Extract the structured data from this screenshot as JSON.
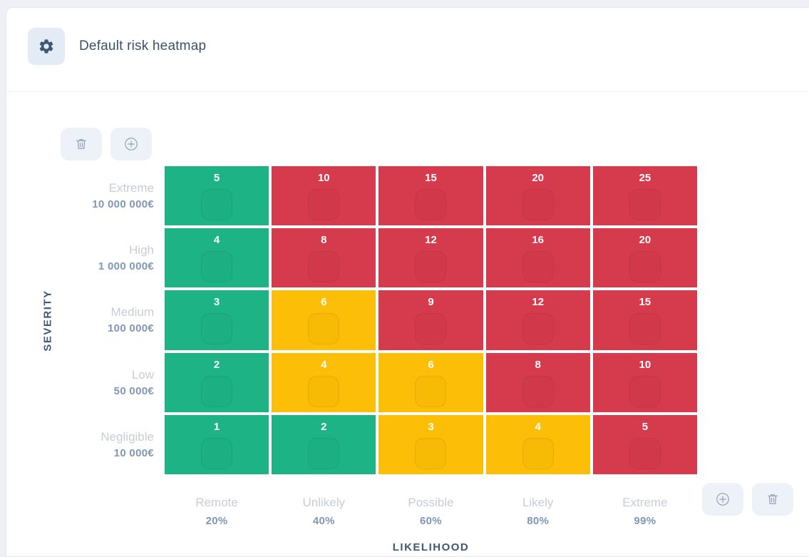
{
  "page": {
    "background": "#eef0f6",
    "card_background": "#ffffff"
  },
  "header": {
    "title": "Default risk heatmap",
    "settings_icon": "gear-icon"
  },
  "top_actions": {
    "delete_button_icon": "trash-icon",
    "add_button_icon": "plus-circle-icon"
  },
  "bottom_actions": {
    "add_button_icon": "plus-circle-icon",
    "delete_button_icon": "trash-icon"
  },
  "heatmap": {
    "y_axis_label": "SEVERITY",
    "x_axis_label": "LIKELIHOOD",
    "severity_rows": [
      {
        "label": "Extreme",
        "value": "10 000 000€"
      },
      {
        "label": "High",
        "value": "1 000 000€"
      },
      {
        "label": "Medium",
        "value": "100 000€"
      },
      {
        "label": "Low",
        "value": "50 000€"
      },
      {
        "label": "Negligible",
        "value": "10 000€"
      }
    ],
    "likelihood_columns": [
      {
        "label": "Remote",
        "value": "20%"
      },
      {
        "label": "Unlikely",
        "value": "40%"
      },
      {
        "label": "Possible",
        "value": "60%"
      },
      {
        "label": "Likely",
        "value": "80%"
      },
      {
        "label": "Extreme",
        "value": "99%"
      }
    ],
    "colors": {
      "green": "#1DB385",
      "yellow": "#FCBE06",
      "red": "#D63B4D"
    },
    "cells": [
      [
        {
          "score": 5,
          "color": "green"
        },
        {
          "score": 10,
          "color": "red"
        },
        {
          "score": 15,
          "color": "red"
        },
        {
          "score": 20,
          "color": "red"
        },
        {
          "score": 25,
          "color": "red"
        }
      ],
      [
        {
          "score": 4,
          "color": "green"
        },
        {
          "score": 8,
          "color": "red"
        },
        {
          "score": 12,
          "color": "red"
        },
        {
          "score": 16,
          "color": "red"
        },
        {
          "score": 20,
          "color": "red"
        }
      ],
      [
        {
          "score": 3,
          "color": "green"
        },
        {
          "score": 6,
          "color": "yellow"
        },
        {
          "score": 9,
          "color": "red"
        },
        {
          "score": 12,
          "color": "red"
        },
        {
          "score": 15,
          "color": "red"
        }
      ],
      [
        {
          "score": 2,
          "color": "green"
        },
        {
          "score": 4,
          "color": "yellow"
        },
        {
          "score": 6,
          "color": "yellow"
        },
        {
          "score": 8,
          "color": "red"
        },
        {
          "score": 10,
          "color": "red"
        }
      ],
      [
        {
          "score": 1,
          "color": "green"
        },
        {
          "score": 2,
          "color": "green"
        },
        {
          "score": 3,
          "color": "yellow"
        },
        {
          "score": 4,
          "color": "yellow"
        },
        {
          "score": 5,
          "color": "red"
        }
      ]
    ]
  }
}
